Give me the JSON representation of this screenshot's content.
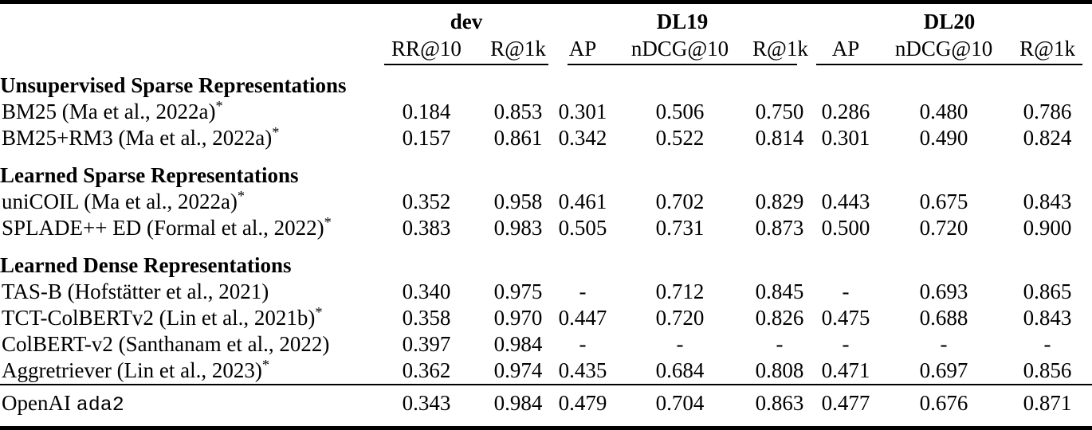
{
  "table": {
    "header": {
      "groups": [
        {
          "label": "dev",
          "cols": [
            "RR@10",
            "R@1k"
          ]
        },
        {
          "label": "DL19",
          "cols": [
            "AP",
            "nDCG@10",
            "R@1k"
          ]
        },
        {
          "label": "DL20",
          "cols": [
            "AP",
            "nDCG@10",
            "R@1k"
          ]
        }
      ]
    },
    "sections": [
      {
        "heading": "Unsupervised Sparse Representations",
        "rows": [
          {
            "label": "BM25 (Ma et al., 2022a)",
            "sup": "*",
            "values": [
              "0.184",
              "0.853",
              "0.301",
              "0.506",
              "0.750",
              "0.286",
              "0.480",
              "0.786"
            ]
          },
          {
            "label": "BM25+RM3 (Ma et al., 2022a)",
            "sup": "*",
            "values": [
              "0.157",
              "0.861",
              "0.342",
              "0.522",
              "0.814",
              "0.301",
              "0.490",
              "0.824"
            ]
          }
        ]
      },
      {
        "heading": "Learned Sparse Representations",
        "rows": [
          {
            "label": "uniCOIL (Ma et al., 2022a)",
            "sup": "*",
            "values": [
              "0.352",
              "0.958",
              "0.461",
              "0.702",
              "0.829",
              "0.443",
              "0.675",
              "0.843"
            ]
          },
          {
            "label": "SPLADE++ ED (Formal et al., 2022)",
            "sup": "*",
            "values": [
              "0.383",
              "0.983",
              "0.505",
              "0.731",
              "0.873",
              "0.500",
              "0.720",
              "0.900"
            ]
          }
        ]
      },
      {
        "heading": "Learned Dense Representations",
        "rows": [
          {
            "label": "TAS-B (Hofstätter et al., 2021)",
            "sup": "",
            "values": [
              "0.340",
              "0.975",
              "-",
              "0.712",
              "0.845",
              "-",
              "0.693",
              "0.865"
            ]
          },
          {
            "label": "TCT-ColBERTv2 (Lin et al., 2021b)",
            "sup": "*",
            "values": [
              "0.358",
              "0.970",
              "0.447",
              "0.720",
              "0.826",
              "0.475",
              "0.688",
              "0.843"
            ]
          },
          {
            "label": "ColBERT-v2 (Santhanam et al., 2022)",
            "sup": "",
            "values": [
              "0.397",
              "0.984",
              "-",
              "-",
              "-",
              "-",
              "-",
              "-"
            ]
          },
          {
            "label": "Aggretriever (Lin et al., 2023)",
            "sup": "*",
            "values": [
              "0.362",
              "0.974",
              "0.435",
              "0.684",
              "0.808",
              "0.471",
              "0.697",
              "0.856"
            ]
          }
        ]
      }
    ],
    "footer": {
      "label_serif": "OpenAI",
      "label_mono": "ada2",
      "values": [
        "0.343",
        "0.984",
        "0.479",
        "0.704",
        "0.863",
        "0.477",
        "0.676",
        "0.871"
      ]
    }
  }
}
